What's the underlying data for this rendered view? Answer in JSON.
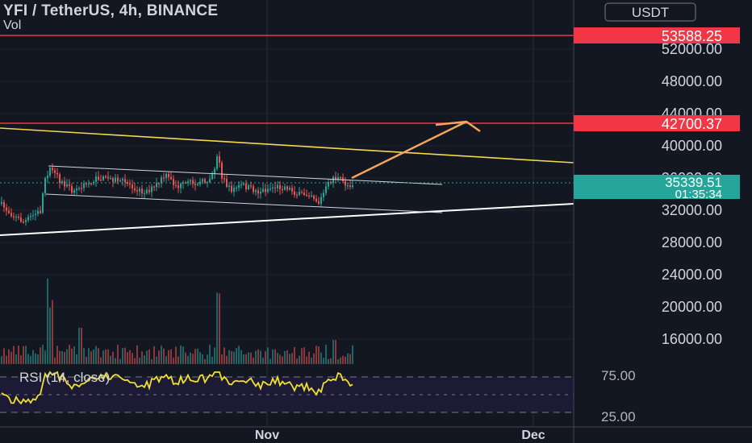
{
  "header": {
    "symbol_line": "YFI / TetherUS, 4h, BINANCE",
    "volume_label": "Vol"
  },
  "price_scale": {
    "currency_label": "USDT",
    "ticks": [
      "52000.00",
      "48000.00",
      "44000.00",
      "40000.00",
      "36000.00",
      "32000.00",
      "28000.00",
      "24000.00",
      "20000.00",
      "16000.00"
    ],
    "tick_values": [
      52000,
      48000,
      44000,
      40000,
      36000,
      32000,
      28000,
      24000,
      20000,
      16000
    ]
  },
  "levels": [
    {
      "label": "53588.25",
      "value": 53588.25,
      "color": "#f23645"
    },
    {
      "label": "42700.37",
      "value": 42700.37,
      "color": "#f23645"
    }
  ],
  "last_price": {
    "label": "35339.51",
    "countdown": "01:35:34",
    "value": 35339.51,
    "color": "#26a69a"
  },
  "rsi": {
    "title": "RSI (14, close)",
    "upper_label": "75.00",
    "lower_label": "25.00",
    "line_color": "#f0e130"
  },
  "time_axis": {
    "labels": [
      "Nov",
      "Dec"
    ]
  },
  "colors": {
    "background": "#131722",
    "up_candle": "#26a69a",
    "down_candle": "#ef5350",
    "trendline_yellow": "#f7d84a",
    "trendline_white": "#ffffff",
    "arrow": "#f7a35c"
  }
}
